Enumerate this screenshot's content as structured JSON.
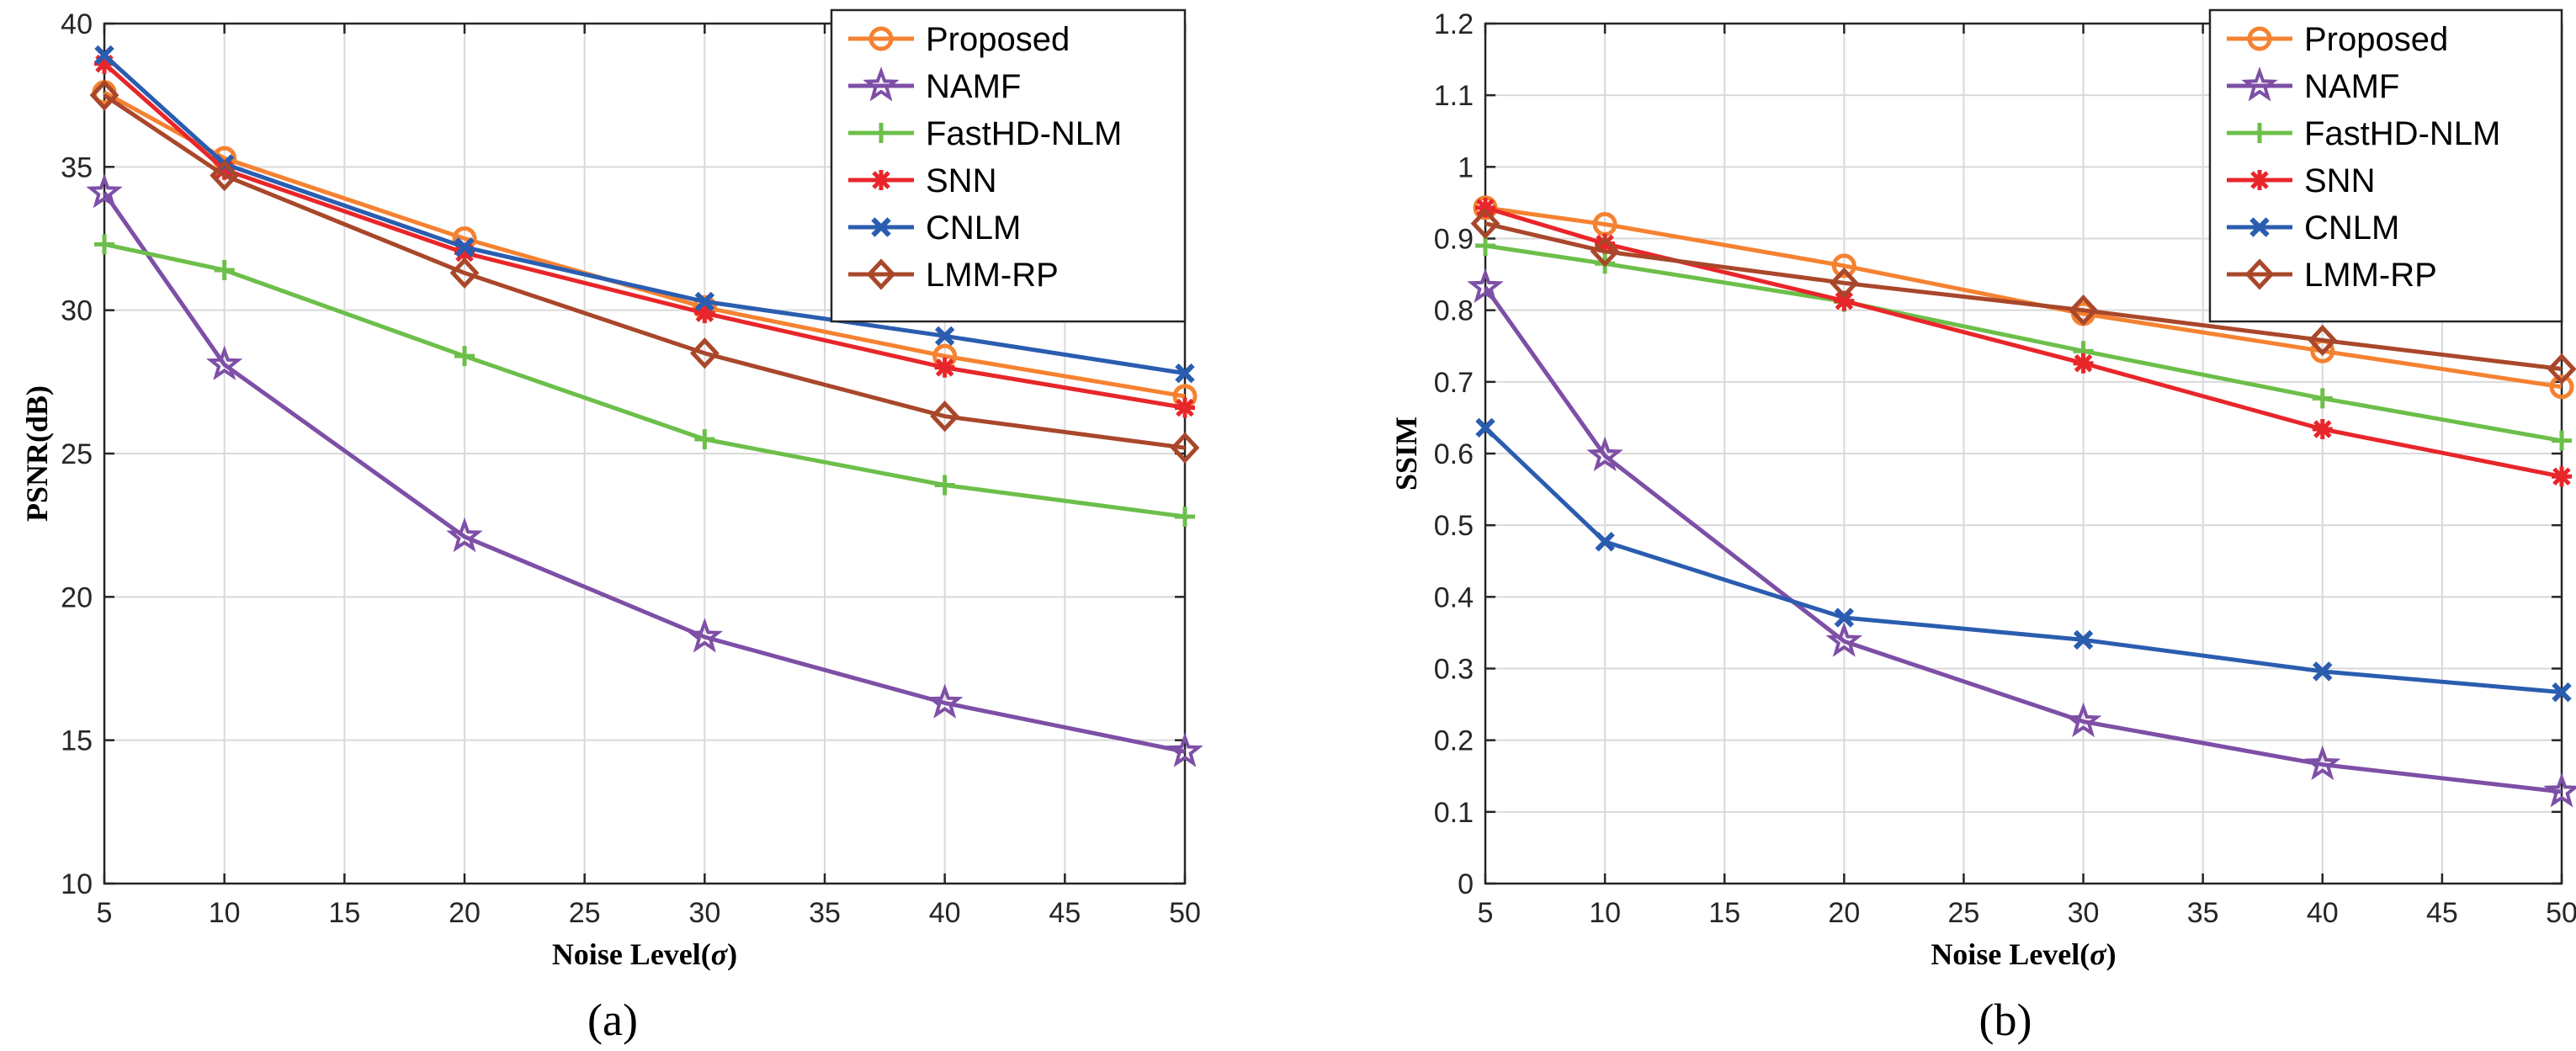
{
  "chart_data": [
    {
      "type": "line",
      "panel": "(a)",
      "xlabel": "Noise Level(σ)",
      "ylabel": "PSNR(dB)",
      "x": [
        5,
        10,
        20,
        30,
        40,
        50
      ],
      "xlim": [
        5,
        50
      ],
      "ylim": [
        10,
        40
      ],
      "xticks": [
        5,
        10,
        15,
        20,
        25,
        30,
        35,
        40,
        45,
        50
      ],
      "yticks": [
        10,
        15,
        20,
        25,
        30,
        35,
        40
      ],
      "grid": true,
      "legend_position": "top-right",
      "series": [
        {
          "name": "Proposed",
          "color": "#f58231",
          "marker": "circle",
          "values": [
            37.6,
            35.3,
            32.5,
            30.1,
            28.4,
            27.0
          ]
        },
        {
          "name": "NAMF",
          "color": "#7e4fa6",
          "marker": "star",
          "values": [
            34.1,
            28.1,
            22.1,
            18.6,
            16.3,
            14.6
          ]
        },
        {
          "name": "FastHD-NLM",
          "color": "#6cbf4a",
          "marker": "plus",
          "values": [
            32.3,
            31.4,
            28.4,
            25.5,
            23.9,
            22.8
          ]
        },
        {
          "name": "SNN",
          "color": "#e8262a",
          "marker": "asterisk",
          "values": [
            38.6,
            34.9,
            32.0,
            29.9,
            28.0,
            26.6
          ]
        },
        {
          "name": "CNLM",
          "color": "#2a5db0",
          "marker": "x",
          "values": [
            38.9,
            35.1,
            32.2,
            30.3,
            29.1,
            27.8
          ]
        },
        {
          "name": "LMM-RP",
          "color": "#a9472b",
          "marker": "diamond",
          "values": [
            37.5,
            34.7,
            31.3,
            28.5,
            26.3,
            25.2
          ]
        }
      ]
    },
    {
      "type": "line",
      "panel": "(b)",
      "xlabel": "Noise Level(σ)",
      "ylabel": "SSIM",
      "x": [
        5,
        10,
        20,
        30,
        40,
        50
      ],
      "xlim": [
        5,
        50
      ],
      "ylim": [
        0,
        1.2
      ],
      "xticks": [
        5,
        10,
        15,
        20,
        25,
        30,
        35,
        40,
        45,
        50
      ],
      "yticks": [
        0,
        0.1,
        0.2,
        0.3,
        0.4,
        0.5,
        0.6,
        0.7,
        0.8,
        0.9,
        1,
        1.1,
        1.2
      ],
      "grid": true,
      "legend_position": "top-right",
      "series": [
        {
          "name": "Proposed",
          "color": "#f58231",
          "marker": "circle",
          "values": [
            0.943,
            0.92,
            0.862,
            0.795,
            0.743,
            0.693
          ]
        },
        {
          "name": "NAMF",
          "color": "#7e4fa6",
          "marker": "star",
          "values": [
            0.832,
            0.597,
            0.338,
            0.226,
            0.166,
            0.128
          ]
        },
        {
          "name": "FastHD-NLM",
          "color": "#6cbf4a",
          "marker": "plus",
          "values": [
            0.89,
            0.865,
            0.812,
            0.743,
            0.677,
            0.618
          ]
        },
        {
          "name": "SNN",
          "color": "#e8262a",
          "marker": "asterisk",
          "values": [
            0.943,
            0.893,
            0.813,
            0.726,
            0.634,
            0.568
          ]
        },
        {
          "name": "CNLM",
          "color": "#2a5db0",
          "marker": "x",
          "values": [
            0.636,
            0.477,
            0.371,
            0.34,
            0.296,
            0.267
          ]
        },
        {
          "name": "LMM-RP",
          "color": "#a9472b",
          "marker": "diamond",
          "values": [
            0.921,
            0.882,
            0.838,
            0.8,
            0.758,
            0.718
          ]
        }
      ]
    }
  ]
}
